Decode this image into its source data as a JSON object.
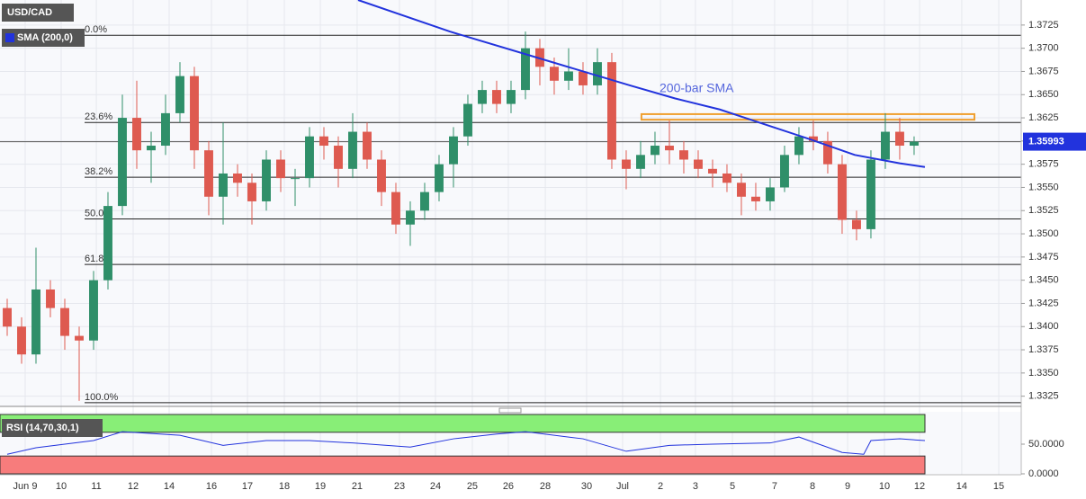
{
  "chart_data": [
    {
      "type": "candlestick",
      "symbol": "USD/CAD",
      "indicator": "SMA (200,0)",
      "open": [
        1.342,
        1.34,
        1.337,
        1.344,
        1.342,
        1.339,
        1.3385,
        1.345,
        1.353,
        1.3625,
        1.359,
        1.3595,
        1.363,
        1.367,
        1.359,
        1.354,
        1.3565,
        1.3555,
        1.3535,
        1.358,
        1.356,
        1.356,
        1.3605,
        1.3595,
        1.357,
        1.361,
        1.358,
        1.3545,
        1.351,
        1.3525,
        1.3545,
        1.3575,
        1.3605,
        1.364,
        1.3655,
        1.364,
        1.3655,
        1.37,
        1.368,
        1.3665,
        1.3675,
        1.366,
        1.3685,
        1.358,
        1.357,
        1.3585,
        1.3595,
        1.359,
        1.358,
        1.357,
        1.3565,
        1.3555,
        1.354,
        1.3535,
        1.355,
        1.3585,
        1.3605,
        1.36,
        1.3575,
        1.3515,
        1.3505,
        1.358,
        1.361,
        1.3595
      ],
      "high": [
        1.343,
        1.341,
        1.3485,
        1.345,
        1.343,
        1.34,
        1.346,
        1.3545,
        1.365,
        1.3665,
        1.361,
        1.365,
        1.3685,
        1.368,
        1.36,
        1.362,
        1.3575,
        1.3565,
        1.359,
        1.359,
        1.357,
        1.3615,
        1.3615,
        1.3605,
        1.363,
        1.362,
        1.359,
        1.3555,
        1.3535,
        1.3555,
        1.3585,
        1.3615,
        1.365,
        1.3665,
        1.3665,
        1.3665,
        1.3718,
        1.371,
        1.369,
        1.37,
        1.3685,
        1.37,
        1.3695,
        1.359,
        1.36,
        1.361,
        1.3622,
        1.36,
        1.359,
        1.358,
        1.3575,
        1.3565,
        1.3555,
        1.356,
        1.3595,
        1.3615,
        1.3622,
        1.361,
        1.3585,
        1.3525,
        1.359,
        1.363,
        1.3625,
        1.3605
      ],
      "low": [
        1.339,
        1.336,
        1.336,
        1.341,
        1.3375,
        1.332,
        1.3375,
        1.344,
        1.352,
        1.357,
        1.3555,
        1.3585,
        1.362,
        1.357,
        1.352,
        1.351,
        1.354,
        1.351,
        1.3525,
        1.3545,
        1.353,
        1.355,
        1.358,
        1.355,
        1.356,
        1.357,
        1.353,
        1.35,
        1.3487,
        1.3515,
        1.3535,
        1.355,
        1.3595,
        1.363,
        1.363,
        1.363,
        1.3645,
        1.366,
        1.365,
        1.3655,
        1.365,
        1.365,
        1.357,
        1.3548,
        1.356,
        1.3575,
        1.3575,
        1.3565,
        1.356,
        1.355,
        1.3545,
        1.352,
        1.3525,
        1.3525,
        1.3545,
        1.3575,
        1.359,
        1.3565,
        1.35,
        1.3493,
        1.3495,
        1.357,
        1.358,
        1.3585
      ],
      "close": [
        1.34,
        1.337,
        1.344,
        1.342,
        1.339,
        1.3385,
        1.345,
        1.353,
        1.3625,
        1.359,
        1.3595,
        1.363,
        1.367,
        1.359,
        1.354,
        1.3565,
        1.3555,
        1.3535,
        1.358,
        1.356,
        1.356,
        1.3605,
        1.3595,
        1.357,
        1.361,
        1.358,
        1.3545,
        1.351,
        1.3525,
        1.3545,
        1.3575,
        1.3605,
        1.364,
        1.3655,
        1.364,
        1.3655,
        1.37,
        1.368,
        1.3665,
        1.3675,
        1.366,
        1.3685,
        1.358,
        1.357,
        1.3585,
        1.3595,
        1.359,
        1.358,
        1.357,
        1.3565,
        1.3555,
        1.354,
        1.3535,
        1.355,
        1.3585,
        1.3605,
        1.36,
        1.3575,
        1.3515,
        1.3505,
        1.358,
        1.361,
        1.3595,
        1.35993
      ],
      "up_color": "#2f8f69",
      "down_color": "#de5a50",
      "sma": {
        "color": "#2233dd",
        "x": [
          24.375,
          30.75,
          37,
          43.25,
          46.375,
          49.5,
          52.625,
          55.75,
          58.875,
          62,
          63.75
        ],
        "values": [
          1.3752,
          1.3718,
          1.3689,
          1.366,
          1.3646,
          1.3634,
          1.3618,
          1.3602,
          1.3585,
          1.3576,
          1.3572
        ]
      },
      "annotation": "200-bar SMA",
      "fib_levels": [
        {
          "label": "0.0%",
          "value": 1.3714
        },
        {
          "label": "23.6%",
          "value": 1.362
        },
        {
          "label": "38.2%",
          "value": 1.3561
        },
        {
          "label": "50.0%",
          "value": 1.3516
        },
        {
          "label": "61.8%",
          "value": 1.3467
        },
        {
          "label": "100.0%",
          "value": 1.3318
        }
      ],
      "zone": {
        "color": "#f0a030",
        "x": [
          44.06,
          67.19
        ],
        "values": [
          1.3623,
          1.3629
        ]
      },
      "last_price": 1.35993,
      "xlim": [
        -0.5,
        70.44
      ],
      "xticks": [
        {
          "value": 1.25,
          "label": "Jun 9"
        },
        {
          "value": 3.75,
          "label": "10"
        },
        {
          "value": 6.19,
          "label": "11"
        },
        {
          "value": 8.75,
          "label": "12"
        },
        {
          "value": 11.25,
          "label": "14"
        },
        {
          "value": 14.19,
          "label": "16"
        },
        {
          "value": 16.69,
          "label": "17"
        },
        {
          "value": 19.25,
          "label": "18"
        },
        {
          "value": 21.75,
          "label": "19"
        },
        {
          "value": 24.31,
          "label": "21"
        },
        {
          "value": 27.25,
          "label": "23"
        },
        {
          "value": 29.75,
          "label": "24"
        },
        {
          "value": 32.31,
          "label": "25"
        },
        {
          "value": 34.81,
          "label": "26"
        },
        {
          "value": 37.38,
          "label": "28"
        },
        {
          "value": 40.25,
          "label": "30"
        },
        {
          "value": 42.75,
          "label": "Jul"
        },
        {
          "value": 45.38,
          "label": "2"
        },
        {
          "value": 47.81,
          "label": "3"
        },
        {
          "value": 50.38,
          "label": "5"
        },
        {
          "value": 53.31,
          "label": "7"
        },
        {
          "value": 55.94,
          "label": "8"
        },
        {
          "value": 58.38,
          "label": "9"
        },
        {
          "value": 60.94,
          "label": "10"
        },
        {
          "value": 63.38,
          "label": "12"
        },
        {
          "value": 66.31,
          "label": "14"
        },
        {
          "value": 68.88,
          "label": "15"
        }
      ],
      "ylim": [
        1.3314,
        1.3752
      ],
      "yticks": [
        1.3725,
        {
          "value": 1.37,
          "label": "1.3700"
        },
        1.3675,
        {
          "value": 1.365,
          "label": "1.3650"
        },
        1.3625,
        {
          "value": 1.36,
          "label": "1.3600"
        },
        1.3575,
        {
          "value": 1.355,
          "label": "1.3550"
        },
        1.3525,
        {
          "value": 1.35,
          "label": "1.3500"
        },
        1.3475,
        {
          "value": 1.345,
          "label": "1.3450"
        },
        1.3425,
        {
          "value": 1.34,
          "label": "1.3400"
        },
        1.3375,
        {
          "value": 1.335,
          "label": "1.3350"
        },
        1.3325
      ]
    },
    {
      "type": "rsi",
      "label": "RSI (14,70,30,1)",
      "color": "#2233dd",
      "x": [
        0,
        2,
        6,
        8,
        12,
        15,
        18,
        21,
        24,
        28,
        31,
        34,
        36,
        40,
        43,
        46,
        49,
        53,
        55,
        58,
        59.5,
        60,
        62,
        63.75
      ],
      "values": [
        33,
        44,
        56,
        71,
        65,
        48,
        56,
        56,
        52,
        45,
        59,
        67,
        71,
        59,
        38,
        48,
        50,
        52,
        62,
        36,
        33,
        56,
        59,
        56
      ],
      "bands": [
        30,
        70
      ],
      "ylim": [
        0,
        100
      ],
      "yticks": [
        {
          "value": 50,
          "label": "50.0000"
        },
        {
          "value": 0,
          "label": "0.0000"
        }
      ]
    }
  ]
}
